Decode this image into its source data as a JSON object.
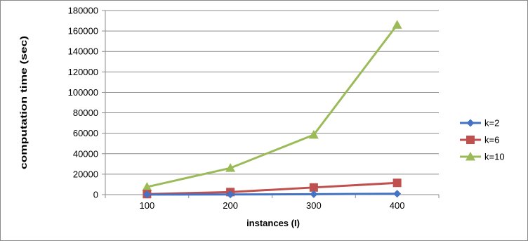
{
  "chart_data": {
    "type": "line",
    "title": "",
    "xlabel": "instances (I)",
    "ylabel": "computation time (sec)",
    "categories": [
      "100",
      "200",
      "300",
      "400"
    ],
    "ylim": [
      0,
      180000
    ],
    "yticks": [
      0,
      20000,
      40000,
      60000,
      80000,
      100000,
      120000,
      140000,
      160000,
      180000
    ],
    "grid": true,
    "legend_position": "right",
    "series": [
      {
        "name": "k=2",
        "color": "#4472C4",
        "marker": "diamond",
        "values": [
          100,
          150,
          400,
          900
        ]
      },
      {
        "name": "k=6",
        "color": "#C0504D",
        "marker": "square",
        "values": [
          500,
          2500,
          7000,
          11500
        ]
      },
      {
        "name": "k=10",
        "color": "#9BBB59",
        "marker": "triangle",
        "values": [
          7500,
          26000,
          58500,
          166000
        ]
      }
    ]
  }
}
